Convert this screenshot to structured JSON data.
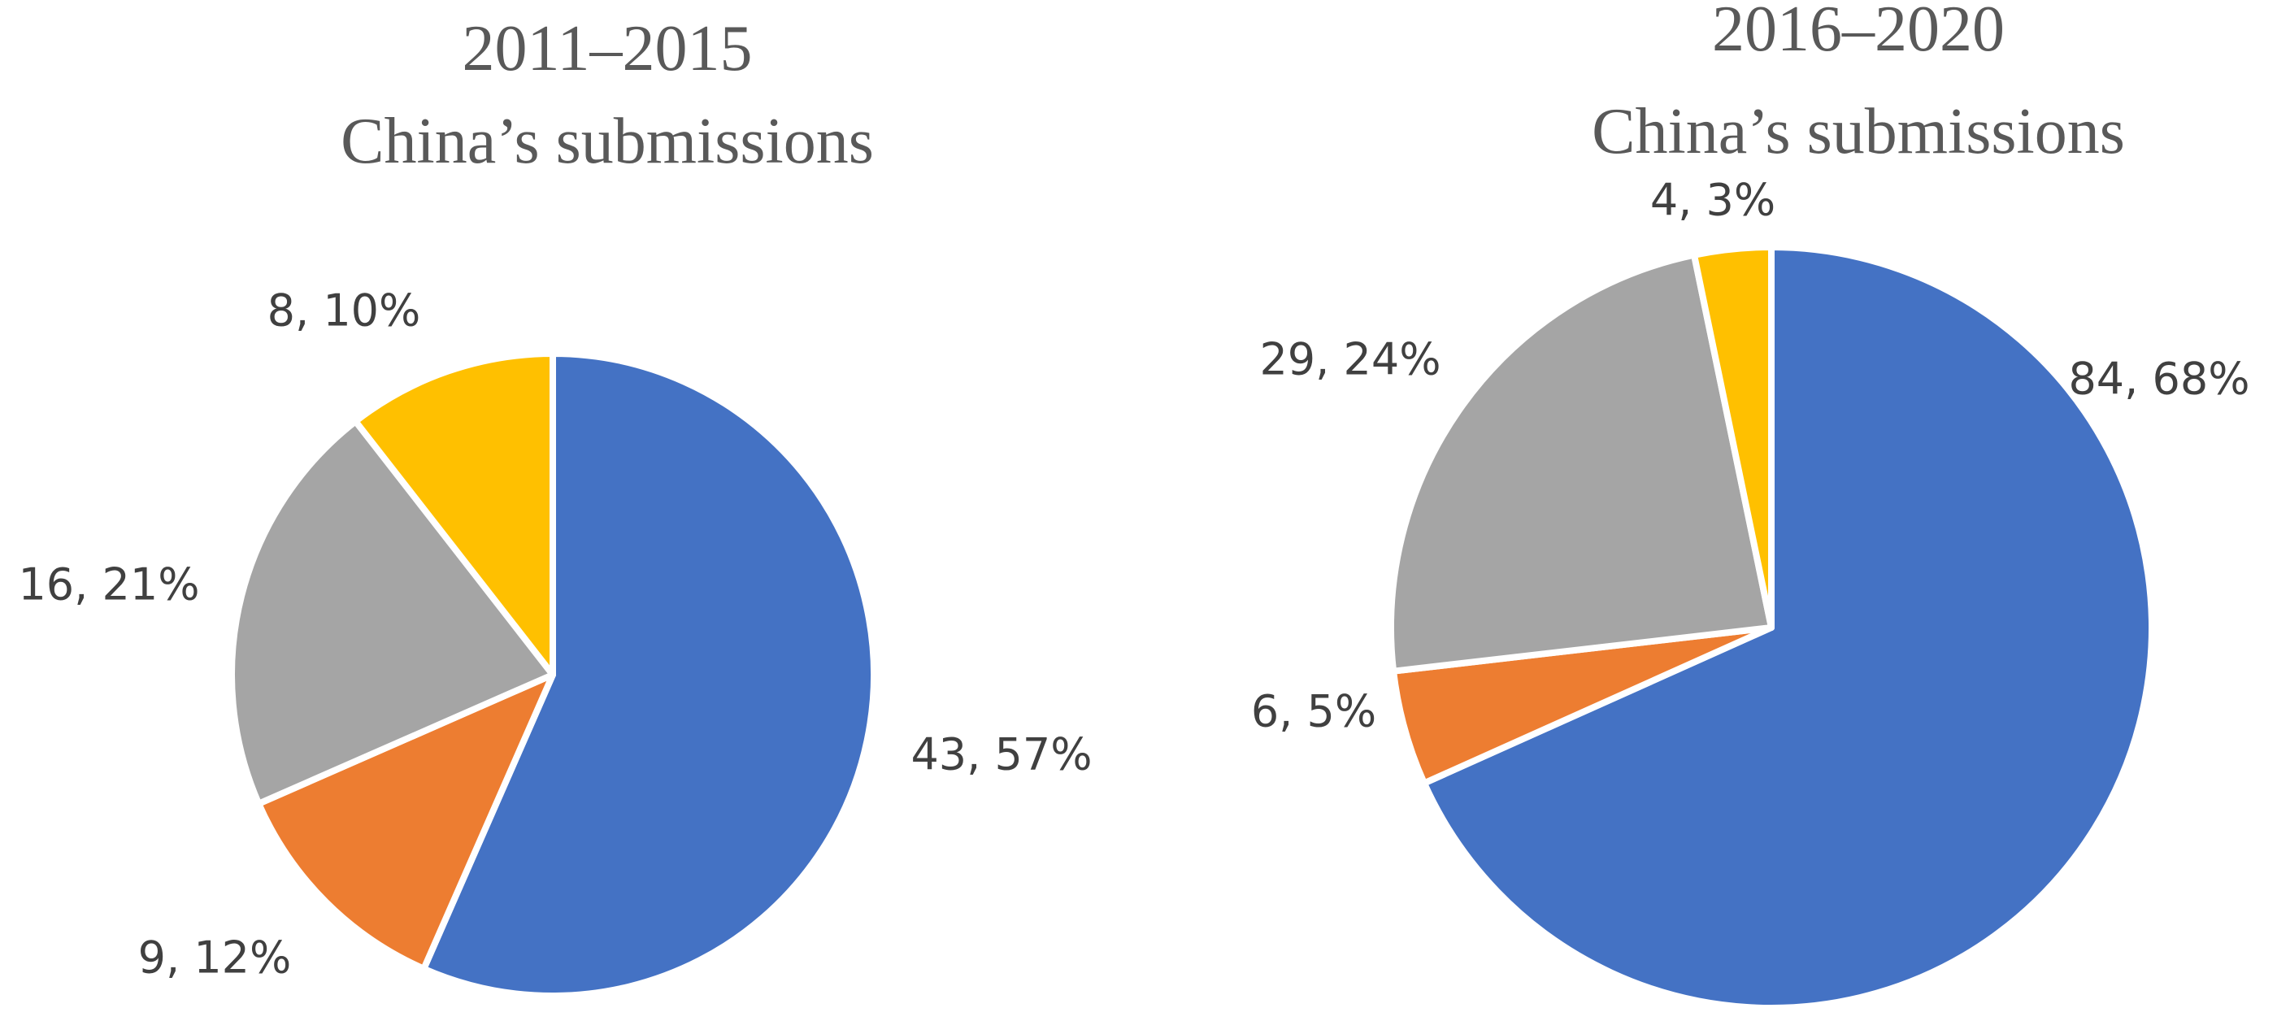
{
  "chart_data": [
    {
      "type": "pie",
      "title": "2011–2015",
      "subtitle": "China’s submissions",
      "values": [
        43,
        9,
        16,
        8
      ],
      "value_labels": [
        "43, 57%",
        "9, 12%",
        "16, 21%",
        "8, 10%"
      ],
      "colors": [
        "#4472c4",
        "#ed7d31",
        "#a5a5a5",
        "#ffc000"
      ]
    },
    {
      "type": "pie",
      "title": "2016–2020",
      "subtitle": "China’s submissions",
      "values": [
        84,
        6,
        29,
        4
      ],
      "value_labels": [
        "84, 68%",
        "6, 5%",
        "29, 24%",
        "4, 3%"
      ],
      "colors": [
        "#4472c4",
        "#ed7d31",
        "#a5a5a5",
        "#ffc000"
      ]
    }
  ]
}
